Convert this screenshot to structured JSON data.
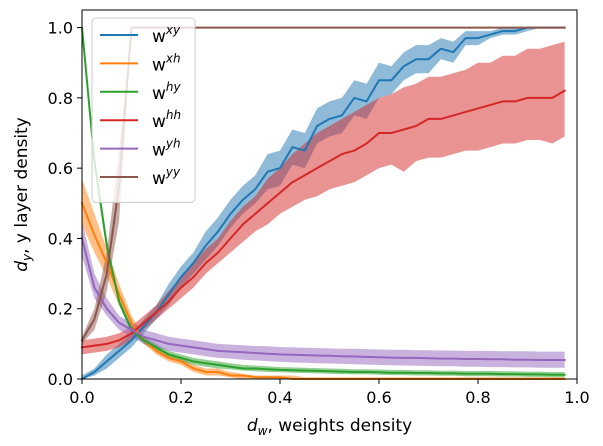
{
  "chart_data": {
    "type": "line",
    "title": "",
    "xlabel": {
      "var": "d",
      "sub": "w",
      "rest": ", weights density"
    },
    "ylabel": {
      "var": "d",
      "sub": "y",
      "rest": ", y layer density"
    },
    "xlim": [
      0.0,
      1.0
    ],
    "ylim": [
      0.0,
      1.05
    ],
    "xticks": [
      0.0,
      0.2,
      0.4,
      0.6,
      0.8,
      1.0
    ],
    "xtick_labels": [
      "0.0",
      "0.2",
      "0.4",
      "0.6",
      "0.8",
      "1.0"
    ],
    "yticks": [
      0.0,
      0.2,
      0.4,
      0.6,
      0.8,
      1.0
    ],
    "ytick_labels": [
      "0.0",
      "0.2",
      "0.4",
      "0.6",
      "0.8",
      "1.0"
    ],
    "grid": false,
    "legend_placement": "top-left",
    "x": [
      0.0,
      0.025,
      0.05,
      0.075,
      0.1,
      0.125,
      0.15,
      0.175,
      0.2,
      0.225,
      0.25,
      0.275,
      0.3,
      0.325,
      0.35,
      0.375,
      0.4,
      0.425,
      0.45,
      0.475,
      0.5,
      0.525,
      0.55,
      0.575,
      0.6,
      0.625,
      0.65,
      0.675,
      0.7,
      0.725,
      0.75,
      0.775,
      0.8,
      0.825,
      0.85,
      0.875,
      0.9,
      0.925,
      0.95,
      0.975
    ],
    "series": [
      {
        "name": "w",
        "sup": "xy",
        "color": "#1f77b4",
        "values": [
          0.0,
          0.02,
          0.05,
          0.08,
          0.11,
          0.15,
          0.19,
          0.24,
          0.29,
          0.33,
          0.38,
          0.42,
          0.47,
          0.51,
          0.54,
          0.59,
          0.6,
          0.66,
          0.65,
          0.72,
          0.74,
          0.75,
          0.8,
          0.79,
          0.85,
          0.85,
          0.89,
          0.91,
          0.91,
          0.94,
          0.93,
          0.97,
          0.97,
          0.98,
          0.99,
          0.99,
          1.0,
          1.0,
          1.0,
          1.0
        ],
        "lower": [
          0.0,
          0.01,
          0.03,
          0.06,
          0.09,
          0.13,
          0.17,
          0.21,
          0.26,
          0.3,
          0.34,
          0.38,
          0.43,
          0.47,
          0.5,
          0.54,
          0.55,
          0.61,
          0.6,
          0.67,
          0.69,
          0.7,
          0.75,
          0.74,
          0.8,
          0.81,
          0.85,
          0.87,
          0.87,
          0.91,
          0.9,
          0.95,
          0.95,
          0.97,
          0.98,
          0.98,
          0.99,
          1.0,
          1.0,
          1.0
        ],
        "upper": [
          0.01,
          0.03,
          0.07,
          0.1,
          0.13,
          0.17,
          0.21,
          0.27,
          0.32,
          0.36,
          0.42,
          0.46,
          0.51,
          0.55,
          0.58,
          0.64,
          0.65,
          0.71,
          0.7,
          0.77,
          0.79,
          0.8,
          0.85,
          0.84,
          0.9,
          0.89,
          0.93,
          0.95,
          0.95,
          0.97,
          0.96,
          0.99,
          0.99,
          0.99,
          1.0,
          1.0,
          1.0,
          1.0,
          1.0,
          1.0
        ]
      },
      {
        "name": "w",
        "sup": "xh",
        "color": "#ff7f0e",
        "values": [
          0.5,
          0.41,
          0.33,
          0.24,
          0.16,
          0.11,
          0.08,
          0.06,
          0.05,
          0.03,
          0.02,
          0.02,
          0.01,
          0.01,
          0.005,
          0.005,
          0.005,
          0.0,
          0.0,
          0.0,
          0.0,
          0.0,
          0.0,
          0.0,
          0.0,
          0.0,
          0.0,
          0.0,
          0.0,
          0.0,
          0.0,
          0.0,
          0.0,
          0.0,
          0.0,
          0.0,
          0.0,
          0.0,
          0.0,
          0.0
        ],
        "lower": [
          0.44,
          0.36,
          0.29,
          0.21,
          0.14,
          0.1,
          0.07,
          0.05,
          0.04,
          0.02,
          0.01,
          0.01,
          0.005,
          0.0,
          0.0,
          0.0,
          0.0,
          0.0,
          0.0,
          0.0,
          0.0,
          0.0,
          0.0,
          0.0,
          0.0,
          0.0,
          0.0,
          0.0,
          0.0,
          0.0,
          0.0,
          0.0,
          0.0,
          0.0,
          0.0,
          0.0,
          0.0,
          0.0,
          0.0,
          0.0
        ],
        "upper": [
          0.57,
          0.47,
          0.37,
          0.27,
          0.18,
          0.12,
          0.09,
          0.07,
          0.06,
          0.04,
          0.03,
          0.03,
          0.02,
          0.015,
          0.01,
          0.01,
          0.01,
          0.01,
          0.005,
          0.005,
          0.005,
          0.005,
          0.005,
          0.005,
          0.005,
          0.005,
          0.005,
          0.005,
          0.005,
          0.005,
          0.005,
          0.005,
          0.005,
          0.005,
          0.005,
          0.005,
          0.005,
          0.005,
          0.005,
          0.005
        ]
      },
      {
        "name": "w",
        "sup": "hy",
        "color": "#2ca02c",
        "values": [
          1.0,
          0.62,
          0.38,
          0.22,
          0.14,
          0.11,
          0.09,
          0.07,
          0.06,
          0.05,
          0.045,
          0.04,
          0.035,
          0.03,
          0.03,
          0.028,
          0.026,
          0.025,
          0.024,
          0.023,
          0.022,
          0.021,
          0.02,
          0.02,
          0.019,
          0.018,
          0.018,
          0.017,
          0.017,
          0.016,
          0.016,
          0.015,
          0.015,
          0.015,
          0.014,
          0.014,
          0.013,
          0.013,
          0.012,
          0.012
        ],
        "lower": [
          1.0,
          0.6,
          0.36,
          0.21,
          0.13,
          0.1,
          0.08,
          0.06,
          0.05,
          0.04,
          0.035,
          0.03,
          0.027,
          0.024,
          0.022,
          0.02,
          0.019,
          0.018,
          0.017,
          0.016,
          0.015,
          0.014,
          0.013,
          0.013,
          0.012,
          0.011,
          0.011,
          0.01,
          0.01,
          0.009,
          0.009,
          0.008,
          0.008,
          0.008,
          0.007,
          0.007,
          0.006,
          0.006,
          0.005,
          0.005
        ],
        "upper": [
          1.0,
          0.64,
          0.4,
          0.23,
          0.15,
          0.12,
          0.1,
          0.08,
          0.07,
          0.06,
          0.055,
          0.05,
          0.045,
          0.04,
          0.038,
          0.036,
          0.034,
          0.033,
          0.032,
          0.031,
          0.03,
          0.029,
          0.028,
          0.028,
          0.027,
          0.026,
          0.026,
          0.025,
          0.025,
          0.024,
          0.024,
          0.023,
          0.023,
          0.023,
          0.022,
          0.022,
          0.021,
          0.021,
          0.02,
          0.02
        ]
      },
      {
        "name": "w",
        "sup": "hh",
        "color": "#d62728",
        "values": [
          0.09,
          0.095,
          0.1,
          0.11,
          0.13,
          0.16,
          0.19,
          0.22,
          0.26,
          0.29,
          0.33,
          0.36,
          0.4,
          0.44,
          0.47,
          0.5,
          0.53,
          0.56,
          0.58,
          0.6,
          0.62,
          0.64,
          0.65,
          0.67,
          0.7,
          0.7,
          0.71,
          0.72,
          0.74,
          0.74,
          0.75,
          0.76,
          0.77,
          0.78,
          0.79,
          0.79,
          0.8,
          0.8,
          0.8,
          0.82
        ],
        "lower": [
          0.07,
          0.075,
          0.08,
          0.09,
          0.11,
          0.14,
          0.17,
          0.2,
          0.23,
          0.26,
          0.3,
          0.33,
          0.36,
          0.39,
          0.42,
          0.44,
          0.47,
          0.49,
          0.51,
          0.52,
          0.54,
          0.55,
          0.56,
          0.58,
          0.6,
          0.61,
          0.59,
          0.62,
          0.63,
          0.63,
          0.64,
          0.65,
          0.65,
          0.66,
          0.67,
          0.67,
          0.68,
          0.68,
          0.67,
          0.69
        ],
        "upper": [
          0.11,
          0.115,
          0.12,
          0.13,
          0.15,
          0.18,
          0.21,
          0.25,
          0.29,
          0.33,
          0.37,
          0.4,
          0.45,
          0.49,
          0.52,
          0.57,
          0.6,
          0.64,
          0.67,
          0.7,
          0.72,
          0.74,
          0.76,
          0.78,
          0.8,
          0.81,
          0.83,
          0.84,
          0.86,
          0.86,
          0.87,
          0.88,
          0.9,
          0.9,
          0.92,
          0.92,
          0.94,
          0.94,
          0.95,
          0.96
        ]
      },
      {
        "name": "w",
        "sup": "yh",
        "color": "#9467bd",
        "values": [
          0.4,
          0.26,
          0.2,
          0.16,
          0.14,
          0.12,
          0.11,
          0.1,
          0.095,
          0.09,
          0.085,
          0.08,
          0.078,
          0.076,
          0.074,
          0.072,
          0.07,
          0.069,
          0.068,
          0.067,
          0.066,
          0.065,
          0.064,
          0.063,
          0.062,
          0.061,
          0.06,
          0.06,
          0.059,
          0.058,
          0.058,
          0.057,
          0.057,
          0.056,
          0.056,
          0.055,
          0.055,
          0.054,
          0.054,
          0.054
        ],
        "lower": [
          0.35,
          0.23,
          0.18,
          0.14,
          0.12,
          0.1,
          0.09,
          0.08,
          0.075,
          0.07,
          0.065,
          0.06,
          0.058,
          0.055,
          0.053,
          0.051,
          0.049,
          0.047,
          0.046,
          0.045,
          0.044,
          0.043,
          0.042,
          0.041,
          0.04,
          0.039,
          0.038,
          0.038,
          0.037,
          0.036,
          0.036,
          0.035,
          0.035,
          0.034,
          0.034,
          0.033,
          0.033,
          0.032,
          0.032,
          0.032
        ],
        "upper": [
          0.45,
          0.3,
          0.23,
          0.18,
          0.16,
          0.14,
          0.13,
          0.12,
          0.115,
          0.11,
          0.105,
          0.1,
          0.098,
          0.096,
          0.094,
          0.093,
          0.091,
          0.09,
          0.089,
          0.088,
          0.087,
          0.086,
          0.086,
          0.085,
          0.084,
          0.083,
          0.083,
          0.082,
          0.082,
          0.081,
          0.081,
          0.08,
          0.08,
          0.08,
          0.079,
          0.079,
          0.079,
          0.078,
          0.078,
          0.078
        ]
      },
      {
        "name": "w",
        "sup": "yy",
        "color": "#8c564b",
        "values": [
          0.11,
          0.17,
          0.3,
          0.55,
          1.0,
          1.0,
          1.0,
          1.0,
          1.0,
          1.0,
          1.0,
          1.0,
          1.0,
          1.0,
          1.0,
          1.0,
          1.0,
          1.0,
          1.0,
          1.0,
          1.0,
          1.0,
          1.0,
          1.0,
          1.0,
          1.0,
          1.0,
          1.0,
          1.0,
          1.0,
          1.0,
          1.0,
          1.0,
          1.0,
          1.0,
          1.0,
          1.0,
          1.0,
          1.0,
          1.0
        ],
        "lower": [
          0.1,
          0.14,
          0.25,
          0.45,
          1.0,
          1.0,
          1.0,
          1.0,
          1.0,
          1.0,
          1.0,
          1.0,
          1.0,
          1.0,
          1.0,
          1.0,
          1.0,
          1.0,
          1.0,
          1.0,
          1.0,
          1.0,
          1.0,
          1.0,
          1.0,
          1.0,
          1.0,
          1.0,
          1.0,
          1.0,
          1.0,
          1.0,
          1.0,
          1.0,
          1.0,
          1.0,
          1.0,
          1.0,
          1.0,
          1.0
        ],
        "upper": [
          0.12,
          0.2,
          0.36,
          0.65,
          1.0,
          1.0,
          1.0,
          1.0,
          1.0,
          1.0,
          1.0,
          1.0,
          1.0,
          1.0,
          1.0,
          1.0,
          1.0,
          1.0,
          1.0,
          1.0,
          1.0,
          1.0,
          1.0,
          1.0,
          1.0,
          1.0,
          1.0,
          1.0,
          1.0,
          1.0,
          1.0,
          1.0,
          1.0,
          1.0,
          1.0,
          1.0,
          1.0,
          1.0,
          1.0,
          1.0
        ]
      }
    ]
  }
}
